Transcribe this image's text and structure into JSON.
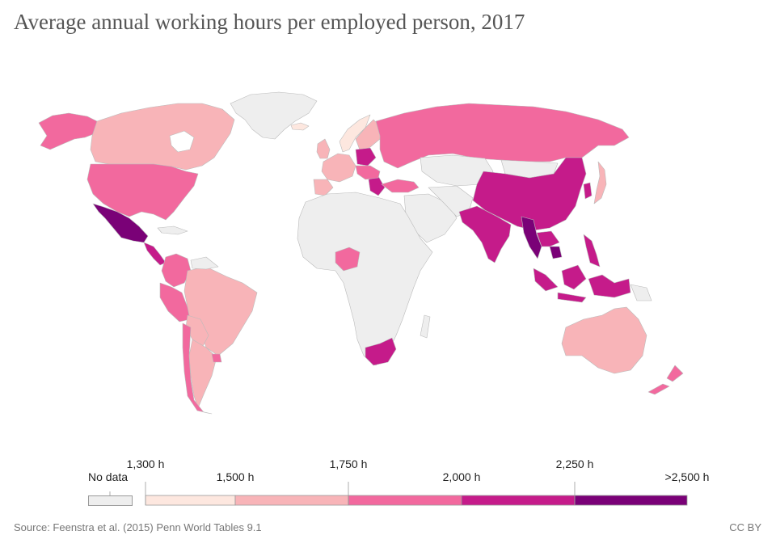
{
  "title": "Average annual working hours per employed person, 2017",
  "legend": {
    "no_data_label": "No data",
    "upper_labels": [
      "1,300 h",
      "1,750 h",
      "2,250 h"
    ],
    "lower_labels": [
      "1,500 h",
      "2,000 h",
      ">2,500 h"
    ],
    "bins": [
      {
        "from": 1300,
        "to": 1500,
        "color": "#fde7df"
      },
      {
        "from": 1500,
        "to": 1750,
        "color": "#f8b4b8"
      },
      {
        "from": 1750,
        "to": 2000,
        "color": "#f2699e"
      },
      {
        "from": 2000,
        "to": 2250,
        "color": "#c51b8a"
      },
      {
        "from": 2250,
        "to": 2500,
        "color": "#7a0177"
      }
    ],
    "no_data_color": "#eeeeee"
  },
  "colors": {
    "no_data": "#eeeeee",
    "bin1": "#fde7df",
    "bin2": "#f8b4b8",
    "bin3": "#f2699e",
    "bin4": "#c51b8a",
    "bin5": "#7a0177"
  },
  "source": "Source: Feenstra et al. (2015) Penn World Tables 9.1",
  "license": "CC BY"
}
